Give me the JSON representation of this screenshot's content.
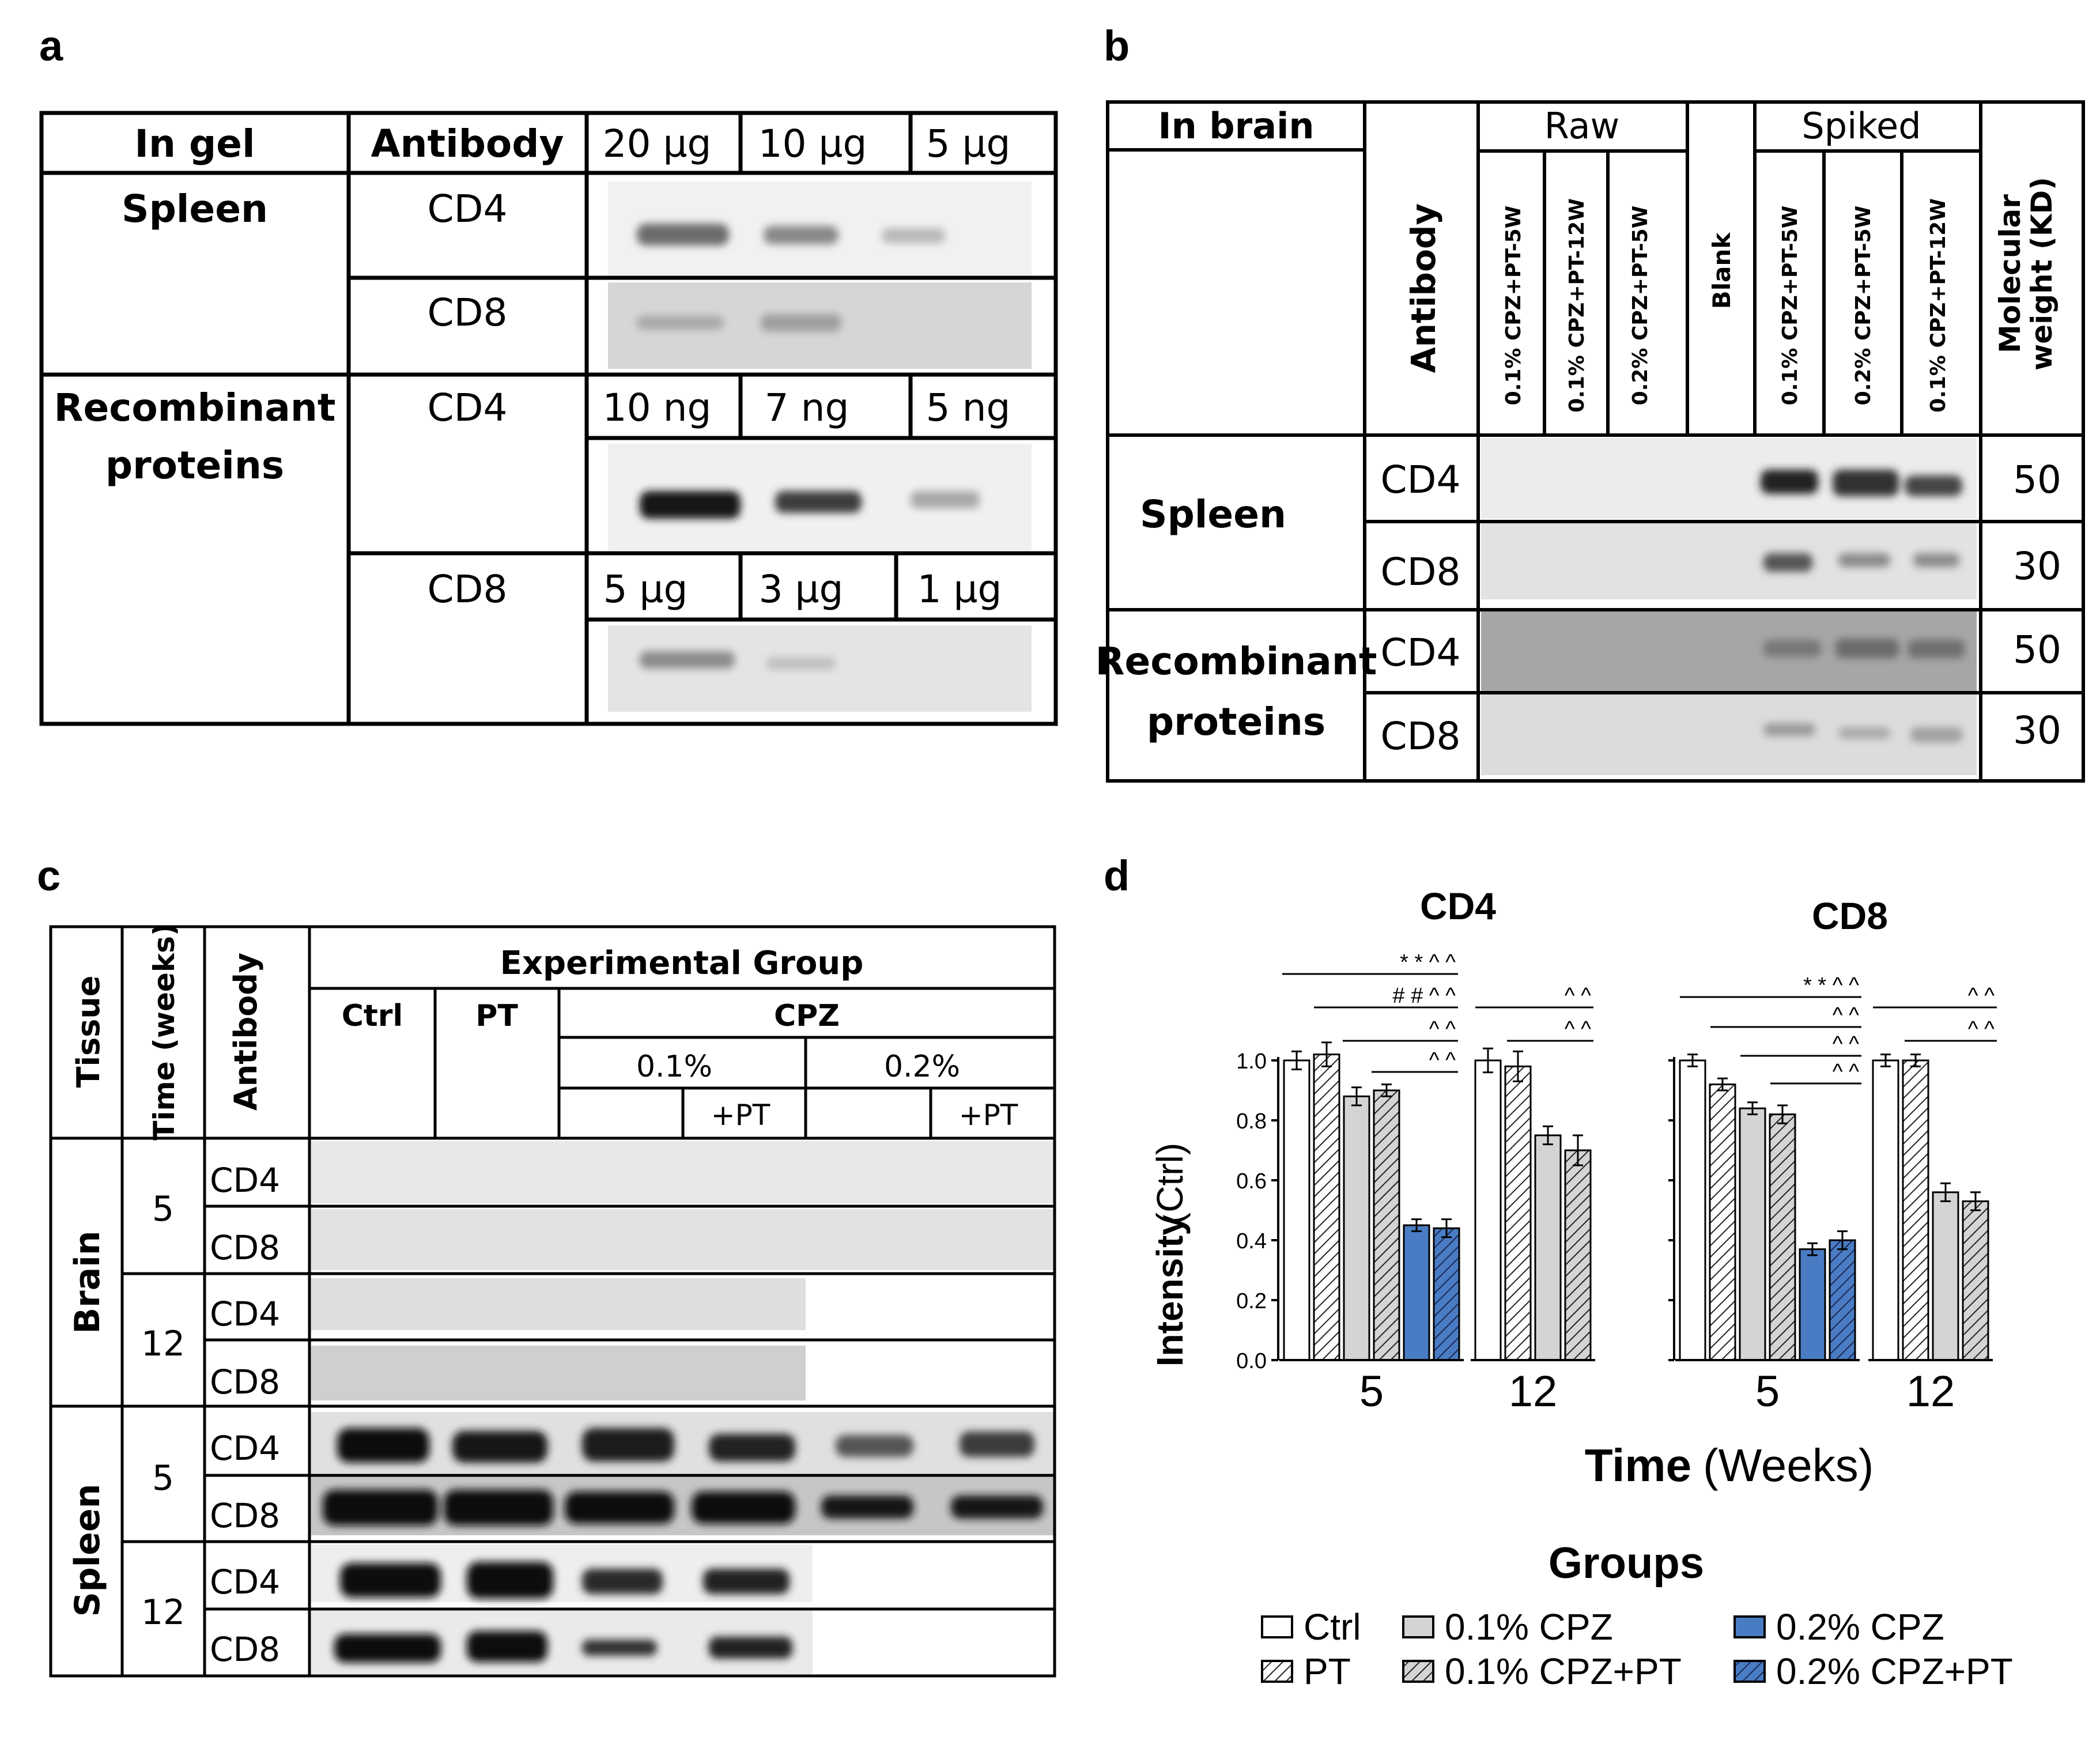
{
  "panel_labels": {
    "a": "a",
    "b": "b",
    "c": "c",
    "d": "d"
  },
  "panel_a": {
    "headers": {
      "in_gel": "In gel",
      "antibody": "Antibody"
    },
    "spleen": "Spleen",
    "spleen_doses": [
      "20 µg",
      "10 µg",
      "5 µg"
    ],
    "recombinant_line1": "Recombinant",
    "recombinant_line2": "proteins",
    "cd4": "CD4",
    "cd8": "CD8",
    "rec_cd4_doses": [
      "10 ng",
      "7 ng",
      "5 ng"
    ],
    "rec_cd8_doses": [
      "5 µg",
      "3 µg",
      "1 µg"
    ]
  },
  "panel_b": {
    "in_brain": "In brain",
    "antibody": "Antibody",
    "raw": "Raw",
    "blank": "Blank",
    "spiked": "Spiked",
    "raw_lanes": [
      "0.1% CPZ+PT-5W",
      "0.1% CPZ+PT-12W",
      "0.2% CPZ+PT-5W"
    ],
    "spiked_lanes": [
      "0.1% CPZ+PT-5W",
      "0.2% CPZ+PT-5W",
      "0.1% CPZ+PT-12W"
    ],
    "mw_line1": "Molecular",
    "mw_line2": "weight (KD)",
    "spleen": "Spleen",
    "recombinant_line1": "Recombinant",
    "recombinant_line2": "proteins",
    "cd4": "CD4",
    "cd8": "CD8",
    "mw_values": [
      "50",
      "30",
      "50",
      "30"
    ]
  },
  "panel_c": {
    "tissue": "Tissue",
    "time": "Time (weeks)",
    "antibody": "Antibody",
    "experimental_group": "Experimental Group",
    "ctrl": "Ctrl",
    "pt": "PT",
    "cpz": "CPZ",
    "pct01": "0.1%",
    "pct02": "0.2%",
    "plus_pt": "+PT",
    "brain": "Brain",
    "spleen": "Spleen",
    "w5": "5",
    "w12": "12",
    "cd4": "CD4",
    "cd8": "CD8"
  },
  "panel_d": {
    "cd4_title": "CD4",
    "cd8_title": "CD8",
    "ylabel_bold": "Intensity",
    "ylabel_normal": "(Ctrl)",
    "xlabel_bold": "Time",
    "xlabel_normal": "(Weeks)",
    "groups_title": "Groups",
    "legend": [
      "Ctrl",
      "PT",
      "0.1% CPZ",
      "0.1% CPZ+PT",
      "0.2% CPZ",
      "0.2% CPZ+PT"
    ],
    "yticks": [
      "0.0",
      "0.2",
      "0.4",
      "0.6",
      "0.8",
      "1.0"
    ],
    "sig_cd4_5w": [
      "* * ^ ^",
      "# # ^ ^",
      "^ ^",
      "^ ^"
    ],
    "sig_cd4_12w": [
      "^ ^",
      "^ ^"
    ],
    "sig_cd8_5w": [
      "* * ^ ^",
      "^ ^",
      "^ ^",
      "^ ^"
    ],
    "sig_cd8_12w": [
      "^ ^",
      "^ ^"
    ],
    "colors": {
      "ctrl": "#ffffff",
      "cpz01": "#d4d4d4",
      "cpz02": "#4a7cc4"
    }
  },
  "chart_data": [
    {
      "type": "bar",
      "title": "CD4",
      "xlabel": "Time (Weeks)",
      "ylabel": "Intensity (Ctrl)",
      "ylim": [
        0,
        1.0
      ],
      "categories": [
        "5",
        "12"
      ],
      "series": [
        {
          "name": "Ctrl",
          "values": [
            1.0,
            1.0
          ],
          "errors": [
            0.03,
            0.04
          ]
        },
        {
          "name": "PT",
          "values": [
            1.02,
            0.98
          ],
          "errors": [
            0.04,
            0.05
          ]
        },
        {
          "name": "0.1% CPZ",
          "values": [
            0.88,
            0.75
          ],
          "errors": [
            0.03,
            0.03
          ]
        },
        {
          "name": "0.1% CPZ+PT",
          "values": [
            0.9,
            0.7
          ],
          "errors": [
            0.02,
            0.05
          ]
        },
        {
          "name": "0.2% CPZ",
          "values": [
            0.45,
            null
          ],
          "errors": [
            0.02,
            null
          ]
        },
        {
          "name": "0.2% CPZ+PT",
          "values": [
            0.44,
            null
          ],
          "errors": [
            0.03,
            null
          ]
        }
      ]
    },
    {
      "type": "bar",
      "title": "CD8",
      "xlabel": "Time (Weeks)",
      "ylabel": "Intensity (Ctrl)",
      "ylim": [
        0,
        1.0
      ],
      "categories": [
        "5",
        "12"
      ],
      "series": [
        {
          "name": "Ctrl",
          "values": [
            1.0,
            1.0
          ],
          "errors": [
            0.02,
            0.02
          ]
        },
        {
          "name": "PT",
          "values": [
            0.92,
            1.0
          ],
          "errors": [
            0.02,
            0.02
          ]
        },
        {
          "name": "0.1% CPZ",
          "values": [
            0.84,
            0.56
          ],
          "errors": [
            0.02,
            0.03
          ]
        },
        {
          "name": "0.1% CPZ+PT",
          "values": [
            0.82,
            0.53
          ],
          "errors": [
            0.03,
            0.03
          ]
        },
        {
          "name": "0.2% CPZ",
          "values": [
            0.37,
            null
          ],
          "errors": [
            0.02,
            null
          ]
        },
        {
          "name": "0.2% CPZ+PT",
          "values": [
            0.4,
            null
          ],
          "errors": [
            0.03,
            null
          ]
        }
      ]
    }
  ]
}
